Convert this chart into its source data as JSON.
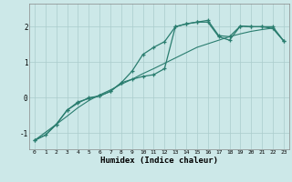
{
  "title": "",
  "xlabel": "Humidex (Indice chaleur)",
  "bg_color": "#cce8e8",
  "line_color": "#2a7d6f",
  "grid_color": "#aacccc",
  "xlim": [
    -0.5,
    23.5
  ],
  "ylim": [
    -1.45,
    2.65
  ],
  "yticks": [
    -1,
    0,
    1,
    2
  ],
  "xticks": [
    0,
    1,
    2,
    3,
    4,
    5,
    6,
    7,
    8,
    9,
    10,
    11,
    12,
    13,
    14,
    15,
    16,
    17,
    18,
    19,
    20,
    21,
    22,
    23
  ],
  "line1_x": [
    0,
    1,
    2,
    3,
    4,
    5,
    6,
    7,
    8,
    9,
    10,
    11,
    12,
    13,
    14,
    15,
    16,
    17,
    18,
    19,
    20,
    21,
    22,
    23
  ],
  "line1_y": [
    -1.2,
    -1.05,
    -0.75,
    -0.52,
    -0.28,
    -0.08,
    0.08,
    0.22,
    0.38,
    0.52,
    0.68,
    0.82,
    0.97,
    1.12,
    1.27,
    1.42,
    1.52,
    1.62,
    1.72,
    1.8,
    1.87,
    1.92,
    1.96,
    1.6
  ],
  "line2_x": [
    0,
    1,
    2,
    3,
    4,
    5,
    6,
    7,
    8,
    9,
    10,
    11,
    12,
    13,
    14,
    15,
    16,
    17,
    18,
    19,
    20,
    21,
    22,
    23
  ],
  "line2_y": [
    -1.2,
    -1.05,
    -0.75,
    -0.35,
    -0.12,
    -0.02,
    0.05,
    0.18,
    0.42,
    0.75,
    1.22,
    1.42,
    1.58,
    2.0,
    2.08,
    2.13,
    2.18,
    1.75,
    1.72,
    2.02,
    2.0,
    2.0,
    1.95,
    1.6
  ],
  "line3_x": [
    0,
    2,
    3,
    4,
    5,
    6,
    7,
    8,
    9,
    10,
    11,
    12,
    13,
    14,
    15,
    16,
    17,
    18,
    19,
    20,
    21,
    22,
    23
  ],
  "line3_y": [
    -1.2,
    -0.75,
    -0.35,
    -0.15,
    0.0,
    0.05,
    0.18,
    0.42,
    0.52,
    0.6,
    0.65,
    0.82,
    2.0,
    2.08,
    2.13,
    2.13,
    1.72,
    1.62,
    2.02,
    2.0,
    2.0,
    2.0,
    1.6
  ]
}
